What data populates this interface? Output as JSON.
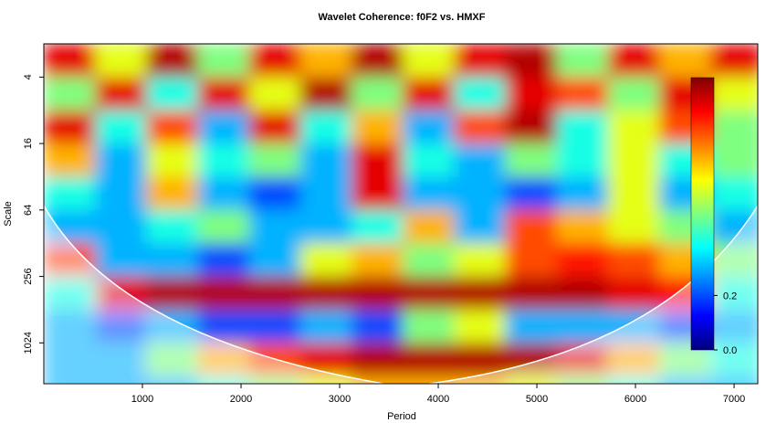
{
  "chart_data": {
    "type": "heatmap",
    "title": "Wavelet Coherence: f0F2 vs. HMXF",
    "x_label": "Period",
    "y_label": "Scale",
    "x": [
      260,
      780,
      1300,
      1820,
      2340,
      2860,
      3380,
      3900,
      4420,
      4940,
      5460,
      5980,
      6500,
      7020
    ],
    "y": [
      2.83,
      5.66,
      11.31,
      22.63,
      45.25,
      90.51,
      181.02,
      362.04,
      724.08,
      1448.15,
      2896.31
    ],
    "values": [
      [
        0.9,
        0.6,
        0.95,
        0.5,
        0.9,
        0.7,
        0.95,
        0.6,
        0.9,
        0.95,
        0.5,
        0.9,
        0.7,
        0.9
      ],
      [
        0.5,
        0.9,
        0.4,
        0.9,
        0.6,
        0.95,
        0.5,
        0.9,
        0.4,
        0.9,
        0.8,
        0.5,
        0.9,
        0.6
      ],
      [
        0.9,
        0.4,
        0.8,
        0.3,
        0.9,
        0.4,
        0.7,
        0.3,
        0.8,
        0.95,
        0.4,
        0.6,
        0.8,
        0.5
      ],
      [
        0.7,
        0.3,
        0.6,
        0.4,
        0.5,
        0.3,
        0.9,
        0.4,
        0.3,
        0.5,
        0.4,
        0.6,
        0.4,
        0.5
      ],
      [
        0.4,
        0.3,
        0.7,
        0.3,
        0.2,
        0.3,
        0.9,
        0.3,
        0.3,
        0.2,
        0.3,
        0.6,
        0.3,
        0.4
      ],
      [
        0.3,
        0.3,
        0.4,
        0.5,
        0.3,
        0.3,
        0.4,
        0.7,
        0.3,
        0.8,
        0.7,
        0.6,
        0.5,
        0.3
      ],
      [
        0.8,
        0.3,
        0.3,
        0.2,
        0.3,
        0.6,
        0.7,
        0.5,
        0.6,
        0.8,
        0.85,
        0.8,
        0.7,
        0.5
      ],
      [
        0.4,
        0.9,
        0.95,
        0.95,
        0.95,
        0.95,
        0.95,
        0.95,
        0.95,
        0.95,
        0.95,
        0.9,
        0.85,
        0.4
      ],
      [
        0.3,
        0.2,
        0.3,
        0.2,
        0.2,
        0.3,
        0.2,
        0.5,
        0.6,
        0.3,
        0.3,
        0.3,
        0.2,
        0.3
      ],
      [
        0.3,
        0.3,
        0.5,
        0.7,
        0.8,
        0.9,
        0.95,
        0.95,
        0.95,
        0.95,
        0.9,
        0.7,
        0.5,
        0.4
      ],
      [
        0.3,
        0.3,
        0.3,
        0.4,
        0.5,
        0.6,
        0.7,
        0.7,
        0.7,
        0.6,
        0.5,
        0.4,
        0.3,
        0.3
      ]
    ],
    "xlim": [
      0,
      7240
    ],
    "xticks": [
      1000,
      2000,
      3000,
      4000,
      5000,
      6000,
      7000
    ],
    "ylim": [
      2,
      2400
    ],
    "yticks": [
      4,
      16,
      64,
      256,
      1024
    ],
    "y_scale": "log2",
    "y_inverted": true,
    "colormap": [
      "#00007f",
      "#0000ff",
      "#007fff",
      "#00ffff",
      "#7fff7f",
      "#ffff00",
      "#ff7f00",
      "#ff0000",
      "#7f0000"
    ],
    "colorbar": {
      "lim": [
        0,
        1
      ],
      "ticks": [
        {
          "value": 0,
          "label": "0.0"
        },
        {
          "value": 0.2,
          "label": "0.2"
        }
      ]
    }
  }
}
